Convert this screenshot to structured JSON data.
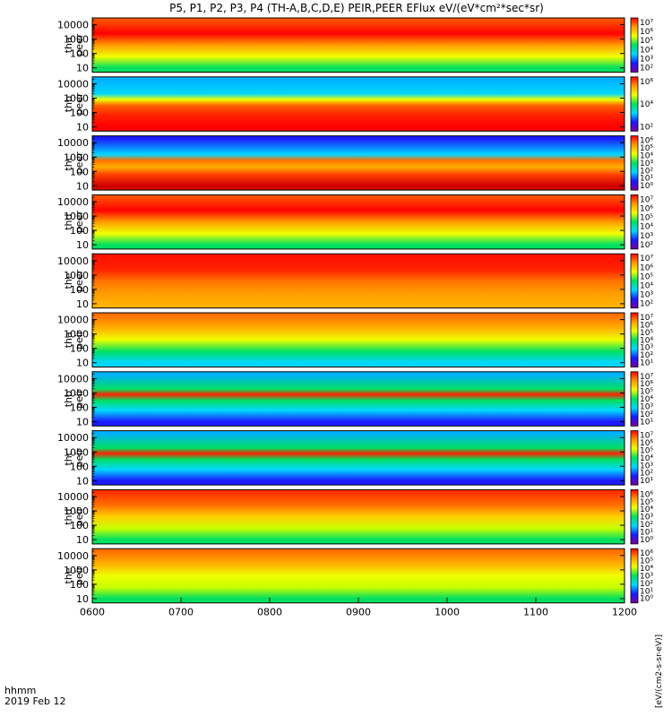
{
  "title": "P5, P1, P2, P3, P4 (TH-A,B,C,D,E) PEIR,PEER EFlux eV/(eV*cm²*sec*sr)",
  "footer": {
    "time_label": "hhmm",
    "date_label": "2019 Feb 12"
  },
  "colorbar_label": "[eV/(cm2-s-sr-eV)]",
  "chart_data": {
    "type": "heatmap",
    "title": "P5, P1, P2, P3, P4 (TH-A,B,C,D,E) PEIR,PEER EFlux eV/(eV*cm²*sec*sr)",
    "x_ticks": [
      "0600",
      "0700",
      "0800",
      "0900",
      "1000",
      "1100",
      "1200"
    ],
    "xlim": [
      "0600",
      "1200"
    ],
    "y_scale": "log",
    "ylim": [
      5,
      30000
    ],
    "y_ticks": [
      "10",
      "100",
      "1000",
      "10000"
    ],
    "colormap": [
      "#7a00a0",
      "#1a1aff",
      "#00d8ff",
      "#00e060",
      "#f0ff00",
      "#ff9a00",
      "#ff0000"
    ],
    "panels": [
      {
        "label_top": "tha",
        "label_bottom": "peer",
        "cbar_ticks": [
          "10⁷",
          "10⁶",
          "10⁵",
          "10⁴",
          "10³",
          "10²"
        ],
        "bands": [
          {
            "y": 10,
            "c": "#00e060"
          },
          {
            "y": 60,
            "c": "#f0ff00"
          },
          {
            "y": 400,
            "c": "#ff9a00"
          },
          {
            "y": 2500,
            "c": "#ff0000"
          },
          {
            "y": 20000,
            "c": "#ff5000"
          }
        ]
      },
      {
        "label_top": "thb",
        "label_bottom": "peer",
        "cbar_ticks": [
          "10⁶",
          "10⁴",
          "10²"
        ],
        "bands": [
          {
            "y": 10,
            "c": "#ff0000"
          },
          {
            "y": 60,
            "c": "#ff2000"
          },
          {
            "y": 300,
            "c": "#ff6000"
          },
          {
            "y": 800,
            "c": "#f0ff00"
          },
          {
            "y": 2000,
            "c": "#00d8ff"
          },
          {
            "y": 20000,
            "c": "#00b0ff"
          }
        ]
      },
      {
        "label_top": "thc",
        "label_bottom": "peer",
        "cbar_ticks": [
          "10⁶",
          "10⁵",
          "10⁴",
          "10³",
          "10²",
          "10¹",
          "10⁰"
        ],
        "bands": [
          {
            "y": 10,
            "c": "#d00000"
          },
          {
            "y": 60,
            "c": "#ff4000"
          },
          {
            "y": 200,
            "c": "#ffb000"
          },
          {
            "y": 600,
            "c": "#ff7000"
          },
          {
            "y": 1500,
            "c": "#00d8ff"
          },
          {
            "y": 20000,
            "c": "#1a1aff"
          }
        ]
      },
      {
        "label_top": "thd",
        "label_bottom": "peer",
        "cbar_ticks": [
          "10⁷",
          "10⁶",
          "10⁵",
          "10⁴",
          "10³",
          "10²"
        ],
        "bands": [
          {
            "y": 10,
            "c": "#00e060"
          },
          {
            "y": 60,
            "c": "#f0ff00"
          },
          {
            "y": 400,
            "c": "#ff9a00"
          },
          {
            "y": 2500,
            "c": "#ff0000"
          },
          {
            "y": 20000,
            "c": "#ff5000"
          }
        ]
      },
      {
        "label_top": "the",
        "label_bottom": "peer",
        "cbar_ticks": [
          "10⁷",
          "10⁶",
          "10⁵",
          "10⁴",
          "10³",
          "10²"
        ],
        "bands": [
          {
            "y": 10,
            "c": "#ffb000"
          },
          {
            "y": 60,
            "c": "#ff9a00"
          },
          {
            "y": 400,
            "c": "#ff7000"
          },
          {
            "y": 2500,
            "c": "#ff2000"
          },
          {
            "y": 20000,
            "c": "#ff1000"
          }
        ]
      },
      {
        "label_top": "tha",
        "label_bottom": "peir",
        "cbar_ticks": [
          "10⁷",
          "10⁶",
          "10⁵",
          "10⁴",
          "10³",
          "10²",
          "10¹"
        ],
        "bands": [
          {
            "y": 10,
            "c": "#00d8ff"
          },
          {
            "y": 60,
            "c": "#00e060"
          },
          {
            "y": 400,
            "c": "#f0ff00"
          },
          {
            "y": 2500,
            "c": "#ffb000"
          },
          {
            "y": 20000,
            "c": "#ff7000"
          }
        ]
      },
      {
        "label_top": "thb",
        "label_bottom": "peir",
        "cbar_ticks": [
          "10⁷",
          "10⁶",
          "10⁵",
          "10⁴",
          "10³",
          "10²",
          "10¹"
        ],
        "bands": [
          {
            "y": 10,
            "c": "#1a1aff"
          },
          {
            "y": 60,
            "c": "#00d8ff"
          },
          {
            "y": 300,
            "c": "#00e060"
          },
          {
            "y": 800,
            "c": "#ff2000"
          },
          {
            "y": 1800,
            "c": "#00e060"
          },
          {
            "y": 20000,
            "c": "#00b0ff"
          }
        ]
      },
      {
        "label_top": "thc",
        "label_bottom": "peir",
        "cbar_ticks": [
          "10⁷",
          "10⁶",
          "10⁵",
          "10⁴",
          "10³",
          "10²",
          "10¹"
        ],
        "bands": [
          {
            "y": 10,
            "c": "#1a1aff"
          },
          {
            "y": 60,
            "c": "#00d8ff"
          },
          {
            "y": 300,
            "c": "#00e060"
          },
          {
            "y": 800,
            "c": "#ff2000"
          },
          {
            "y": 1800,
            "c": "#00e060"
          },
          {
            "y": 20000,
            "c": "#00b0ff"
          }
        ]
      },
      {
        "label_top": "thd",
        "label_bottom": "peir",
        "cbar_ticks": [
          "10⁶",
          "10⁵",
          "10⁴",
          "10³",
          "10²",
          "10¹",
          "10⁰"
        ],
        "bands": [
          {
            "y": 10,
            "c": "#00e060"
          },
          {
            "y": 60,
            "c": "#c8ff00"
          },
          {
            "y": 400,
            "c": "#ffd000"
          },
          {
            "y": 2500,
            "c": "#ff7000"
          },
          {
            "y": 20000,
            "c": "#ff3000"
          }
        ]
      },
      {
        "label_top": "the",
        "label_bottom": "peir",
        "cbar_ticks": [
          "10⁶",
          "10⁵",
          "10⁴",
          "10³",
          "10²",
          "10¹",
          "10⁰"
        ],
        "bands": [
          {
            "y": 10,
            "c": "#00e060"
          },
          {
            "y": 60,
            "c": "#c8ff00"
          },
          {
            "y": 400,
            "c": "#f0ff00"
          },
          {
            "y": 2500,
            "c": "#ffb000"
          },
          {
            "y": 20000,
            "c": "#ff7000"
          }
        ]
      }
    ]
  }
}
